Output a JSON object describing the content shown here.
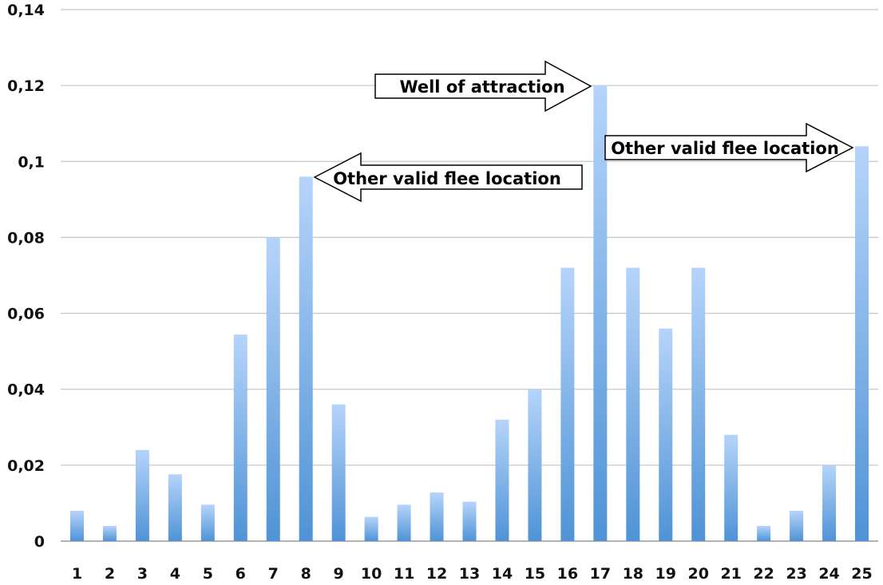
{
  "chart_data": {
    "type": "bar",
    "title": "",
    "xlabel": "",
    "ylabel": "",
    "categories": [
      "1",
      "2",
      "3",
      "4",
      "5",
      "6",
      "7",
      "8",
      "9",
      "10",
      "11",
      "12",
      "13",
      "14",
      "15",
      "16",
      "17",
      "18",
      "19",
      "20",
      "21",
      "22",
      "23",
      "24",
      "25"
    ],
    "values": [
      0.008,
      0.004,
      0.024,
      0.0176,
      0.0096,
      0.0544,
      0.08,
      0.096,
      0.036,
      0.0064,
      0.0096,
      0.0128,
      0.0104,
      0.032,
      0.04,
      0.072,
      0.12,
      0.072,
      0.056,
      0.072,
      0.028,
      0.004,
      0.008,
      0.02,
      0.104
    ],
    "ylim": [
      0,
      0.14
    ],
    "yticks": [
      0,
      0.02,
      0.04,
      0.06,
      0.08,
      0.1,
      0.12,
      0.14
    ],
    "ytick_labels": [
      "0",
      "0,02",
      "0,04",
      "0,06",
      "0,08",
      "0,1",
      "0,12",
      "0,14"
    ],
    "grid": true,
    "legend": "none",
    "bar_color_top": "#b6d4fa",
    "bar_color_bottom": "#4f93d6",
    "annotations": [
      {
        "text": "Well of attraction",
        "target_category": "17",
        "arrow_direction": "right"
      },
      {
        "text": "Other valid flee location",
        "target_category": "8",
        "arrow_direction": "left"
      },
      {
        "text": "Other valid flee location",
        "target_category": "25",
        "arrow_direction": "right"
      }
    ]
  }
}
